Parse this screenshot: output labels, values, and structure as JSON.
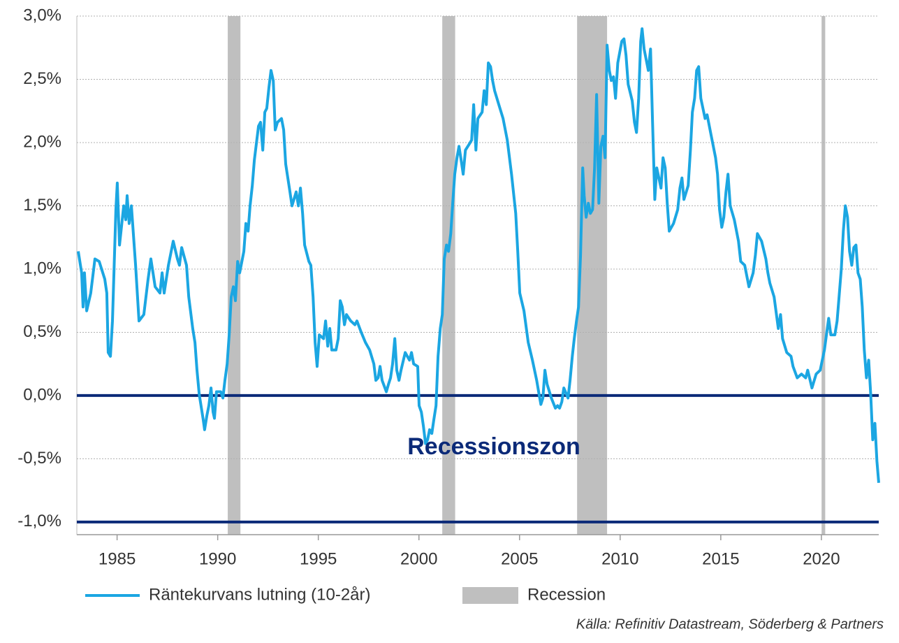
{
  "chart_data": {
    "type": "line",
    "x": [
      1983.07,
      1983.24,
      1983.31,
      1983.38,
      1983.49,
      1983.69,
      1983.9,
      1984.11,
      1984.39,
      1984.49,
      1984.56,
      1984.67,
      1984.77,
      1984.94,
      1985.01,
      1985.12,
      1985.33,
      1985.43,
      1985.5,
      1985.6,
      1985.71,
      1985.92,
      1986.09,
      1986.33,
      1986.54,
      1986.68,
      1986.89,
      1987.13,
      1987.24,
      1987.34,
      1987.55,
      1987.79,
      1988.0,
      1988.1,
      1988.21,
      1988.45,
      1988.56,
      1988.76,
      1988.87,
      1988.97,
      1989.08,
      1989.28,
      1989.35,
      1989.46,
      1989.56,
      1989.67,
      1989.77,
      1989.84,
      1989.94,
      1990.15,
      1990.26,
      1990.36,
      1990.47,
      1990.57,
      1990.67,
      1990.78,
      1990.88,
      1990.99,
      1991.09,
      1991.3,
      1991.4,
      1991.51,
      1991.61,
      1991.72,
      1991.82,
      1992.03,
      1992.13,
      1992.24,
      1992.34,
      1992.44,
      1992.55,
      1992.65,
      1992.76,
      1992.86,
      1992.97,
      1993.17,
      1993.28,
      1993.38,
      1993.59,
      1993.69,
      1993.9,
      1994.01,
      1994.11,
      1994.22,
      1994.32,
      1994.53,
      1994.63,
      1994.74,
      1994.84,
      1994.94,
      1995.05,
      1995.26,
      1995.36,
      1995.47,
      1995.57,
      1995.67,
      1995.88,
      1995.99,
      1996.09,
      1996.19,
      1996.3,
      1996.4,
      1996.61,
      1996.82,
      1996.92,
      1997.13,
      1997.34,
      1997.55,
      1997.76,
      1997.86,
      1997.97,
      1998.07,
      1998.17,
      1998.38,
      1998.49,
      1998.59,
      1998.69,
      1998.8,
      1998.9,
      1999.01,
      1999.11,
      1999.32,
      1999.53,
      1999.63,
      1999.74,
      1999.94,
      2000.01,
      2000.12,
      2000.22,
      2000.33,
      2000.43,
      2000.53,
      2000.64,
      2000.74,
      2000.85,
      2000.95,
      2001.06,
      2001.16,
      2001.26,
      2001.37,
      2001.47,
      2001.58,
      2001.68,
      2001.78,
      2001.89,
      2001.99,
      2002.1,
      2002.2,
      2002.31,
      2002.51,
      2002.62,
      2002.72,
      2002.83,
      2002.93,
      2003.14,
      2003.24,
      2003.35,
      2003.45,
      2003.56,
      2003.66,
      2003.76,
      2003.97,
      2004.18,
      2004.39,
      2004.6,
      2004.81,
      2004.91,
      2005.01,
      2005.22,
      2005.43,
      2005.64,
      2005.85,
      2005.95,
      2006.06,
      2006.16,
      2006.26,
      2006.37,
      2006.58,
      2006.78,
      2006.89,
      2006.99,
      2007.1,
      2007.2,
      2007.41,
      2007.51,
      2007.62,
      2007.72,
      2007.83,
      2007.93,
      2008.03,
      2008.14,
      2008.21,
      2008.31,
      2008.42,
      2008.52,
      2008.63,
      2008.73,
      2008.83,
      2008.94,
      2009.04,
      2009.15,
      2009.25,
      2009.35,
      2009.46,
      2009.56,
      2009.67,
      2009.77,
      2009.88,
      2010.08,
      2010.19,
      2010.29,
      2010.4,
      2010.6,
      2010.71,
      2010.81,
      2010.92,
      2011.02,
      2011.09,
      2011.19,
      2011.4,
      2011.51,
      2011.61,
      2011.72,
      2011.82,
      2012.03,
      2012.13,
      2012.24,
      2012.34,
      2012.44,
      2012.65,
      2012.86,
      2012.97,
      2013.07,
      2013.17,
      2013.38,
      2013.49,
      2013.59,
      2013.7,
      2013.8,
      2013.9,
      2014.01,
      2014.22,
      2014.32,
      2014.53,
      2014.74,
      2014.84,
      2014.94,
      2015.05,
      2015.15,
      2015.26,
      2015.36,
      2015.47,
      2015.67,
      2015.88,
      2015.99,
      2016.19,
      2016.4,
      2016.61,
      2016.72,
      2016.82,
      2017.03,
      2017.24,
      2017.34,
      2017.44,
      2017.65,
      2017.86,
      2017.97,
      2018.07,
      2018.28,
      2018.49,
      2018.59,
      2018.8,
      2019.01,
      2019.22,
      2019.32,
      2019.53,
      2019.74,
      2019.94,
      2020.15,
      2020.36,
      2020.47,
      2020.67,
      2020.78,
      2020.88,
      2020.99,
      2021.09,
      2021.19,
      2021.3,
      2021.4,
      2021.51,
      2021.61,
      2021.72,
      2021.82,
      2021.93,
      2022.03,
      2022.13,
      2022.24,
      2022.35,
      2022.45,
      2022.55,
      2022.66,
      2022.76,
      2022.85
    ],
    "series": [
      {
        "name": "Räntekurvans lutning (10-2år)",
        "color": "#1ba6e2",
        "values": [
          1.14,
          0.97,
          0.7,
          0.97,
          0.67,
          0.81,
          1.08,
          1.06,
          0.92,
          0.81,
          0.34,
          0.31,
          0.59,
          1.47,
          1.68,
          1.19,
          1.5,
          1.39,
          1.58,
          1.36,
          1.5,
          1.03,
          0.59,
          0.64,
          0.92,
          1.08,
          0.86,
          0.81,
          0.97,
          0.81,
          1.03,
          1.22,
          1.08,
          1.03,
          1.17,
          1.03,
          0.78,
          0.53,
          0.42,
          0.2,
          0.01,
          -0.19,
          -0.27,
          -0.16,
          -0.08,
          0.06,
          -0.13,
          -0.18,
          0.03,
          0.03,
          -0.02,
          0.12,
          0.25,
          0.48,
          0.78,
          0.86,
          0.75,
          1.06,
          0.97,
          1.14,
          1.36,
          1.3,
          1.5,
          1.66,
          1.86,
          2.13,
          2.16,
          1.94,
          2.24,
          2.27,
          2.44,
          2.57,
          2.49,
          2.1,
          2.16,
          2.19,
          2.1,
          1.83,
          1.61,
          1.5,
          1.61,
          1.5,
          1.64,
          1.44,
          1.19,
          1.06,
          1.03,
          0.78,
          0.42,
          0.23,
          0.48,
          0.45,
          0.59,
          0.39,
          0.53,
          0.36,
          0.36,
          0.45,
          0.75,
          0.7,
          0.56,
          0.64,
          0.59,
          0.56,
          0.59,
          0.5,
          0.42,
          0.36,
          0.25,
          0.12,
          0.14,
          0.23,
          0.12,
          0.03,
          0.09,
          0.14,
          0.25,
          0.45,
          0.2,
          0.12,
          0.2,
          0.34,
          0.28,
          0.34,
          0.25,
          0.23,
          -0.08,
          -0.13,
          -0.24,
          -0.38,
          -0.35,
          -0.27,
          -0.3,
          -0.19,
          -0.08,
          0.31,
          0.53,
          0.64,
          1.08,
          1.19,
          1.14,
          1.28,
          1.52,
          1.75,
          1.88,
          1.97,
          1.86,
          1.75,
          1.94,
          1.99,
          2.02,
          2.3,
          1.94,
          2.19,
          2.24,
          2.41,
          2.3,
          2.63,
          2.6,
          2.49,
          2.41,
          2.3,
          2.19,
          2.02,
          1.75,
          1.44,
          1.14,
          0.81,
          0.67,
          0.42,
          0.28,
          0.12,
          0.03,
          -0.07,
          -0.02,
          0.2,
          0.09,
          -0.02,
          -0.1,
          -0.08,
          -0.1,
          -0.05,
          0.06,
          -0.02,
          0.12,
          0.31,
          0.45,
          0.59,
          0.7,
          1.11,
          1.8,
          1.58,
          1.41,
          1.52,
          1.44,
          1.47,
          1.8,
          2.38,
          1.52,
          1.97,
          2.05,
          1.88,
          2.77,
          2.57,
          2.49,
          2.52,
          2.35,
          2.63,
          2.8,
          2.82,
          2.69,
          2.46,
          2.33,
          2.16,
          2.08,
          2.35,
          2.8,
          2.9,
          2.74,
          2.57,
          2.74,
          2.16,
          1.55,
          1.8,
          1.64,
          1.88,
          1.8,
          1.52,
          1.3,
          1.36,
          1.47,
          1.64,
          1.72,
          1.55,
          1.66,
          1.94,
          2.24,
          2.35,
          2.57,
          2.6,
          2.35,
          2.19,
          2.22,
          2.05,
          1.88,
          1.75,
          1.47,
          1.33,
          1.41,
          1.61,
          1.75,
          1.5,
          1.39,
          1.22,
          1.06,
          1.03,
          0.86,
          0.97,
          1.11,
          1.28,
          1.22,
          1.08,
          0.97,
          0.89,
          0.78,
          0.53,
          0.64,
          0.45,
          0.34,
          0.31,
          0.23,
          0.14,
          0.17,
          0.14,
          0.2,
          0.06,
          0.17,
          0.2,
          0.36,
          0.61,
          0.48,
          0.48,
          0.59,
          0.78,
          1.0,
          1.3,
          1.5,
          1.41,
          1.14,
          1.03,
          1.17,
          1.19,
          0.97,
          0.92,
          0.7,
          0.36,
          0.14,
          0.28,
          0.01,
          -0.35,
          -0.22,
          -0.52,
          -0.69
        ]
      }
    ],
    "xlim": [
      1983,
      2022.85
    ],
    "xticks": [
      1985,
      1990,
      1995,
      2000,
      2005,
      2010,
      2015,
      2020
    ],
    "ylim": [
      -1.1,
      3.0
    ],
    "yticks": [
      {
        "value": -1.0,
        "label": "-1,0%"
      },
      {
        "value": -0.5,
        "label": "-0,5%"
      },
      {
        "value": 0,
        "label": "0,0%"
      },
      {
        "value": 0.5,
        "label": "0,5%"
      },
      {
        "value": 1.0,
        "label": "1,0%"
      },
      {
        "value": 1.5,
        "label": "1,5%"
      },
      {
        "value": 2.0,
        "label": "2,0%"
      },
      {
        "value": 2.5,
        "label": "2,5%"
      },
      {
        "value": 3.0,
        "label": "3,0%"
      }
    ],
    "grid": true,
    "recessions": {
      "name": "Recession",
      "color": "#bfbfbf",
      "periods": [
        {
          "start": 1990.5,
          "end": 1991.13
        },
        {
          "start": 2001.16,
          "end": 2001.8
        },
        {
          "start": 2007.86,
          "end": 2009.35
        },
        {
          "start": 2020.01,
          "end": 2020.19
        }
      ]
    },
    "reference_lines": {
      "color": "#0b2a78",
      "values": [
        0,
        -1.0
      ]
    },
    "annotation": "Recessionszon",
    "source": "Källa: Refinitiv Datastream, Söderberg & Partners"
  }
}
